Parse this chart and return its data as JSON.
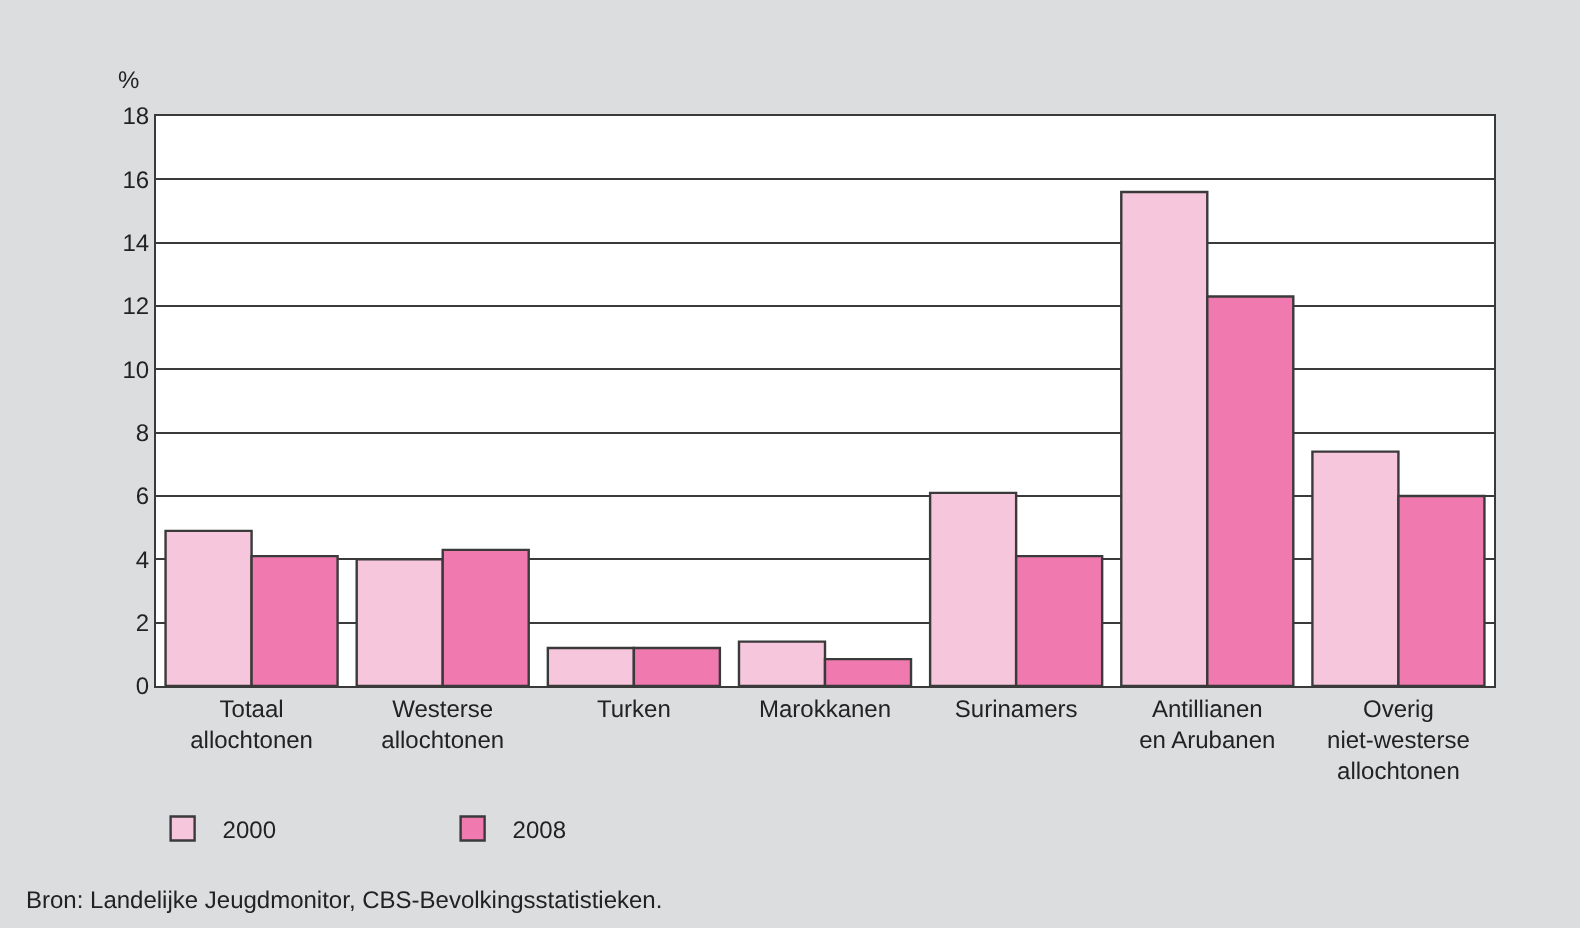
{
  "chart_data": {
    "type": "bar",
    "ylabel": "%",
    "categories": [
      "Totaal\nallochtonen",
      "Westerse\nallochtonen",
      "Turken",
      "Marokkanen",
      "Surinamers",
      "Antillianen\nen Arubanen",
      "Overig\nniet-westerse\nallochtonen"
    ],
    "series": [
      {
        "name": "2000",
        "color": "#f6c6dc",
        "values": [
          4.9,
          4.0,
          1.2,
          1.4,
          6.1,
          15.6,
          7.4
        ]
      },
      {
        "name": "2008",
        "color": "#f07ab0",
        "values": [
          4.1,
          4.3,
          1.2,
          0.85,
          4.1,
          12.3,
          6.0
        ]
      }
    ],
    "ylim": [
      0,
      18
    ],
    "yticks": [
      0,
      2,
      4,
      6,
      8,
      10,
      12,
      14,
      16,
      18
    ],
    "grid": "y",
    "legend": "bottom left",
    "annotations": [
      "Bron: Landelijke Jeugdmonitor, CBS-Bevolkingsstatistieken."
    ]
  }
}
